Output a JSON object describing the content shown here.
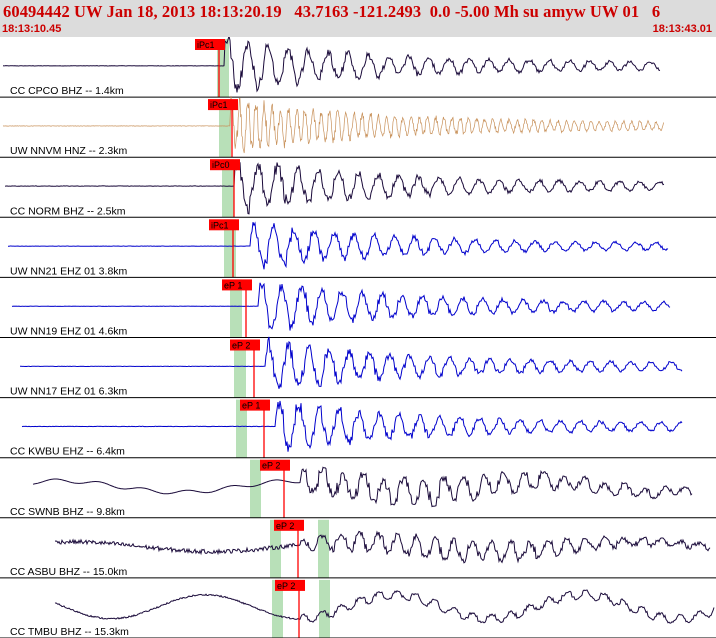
{
  "header": {
    "title": "60494442 UW Jan 18, 2013 18:13:20.19   43.7163 -121.2493  0.0 -5.00 Mh su amyw UW 01   6",
    "start_time": "18:13:10.45",
    "end_time": "18:13:43.01"
  },
  "colors": {
    "header_bg": "#dcdcdc",
    "header_text": "#cc0000",
    "pick": "#ff0000",
    "pick_window": "#b8e0b8",
    "trace_bhz": "#1a0a3a",
    "trace_hnz": "#c8915a",
    "trace_ehz": "#0000cc"
  },
  "channels": [
    {
      "label": "CC CPCO BHZ -- 1.4km",
      "pick": "iPc1",
      "color": "trace_bhz",
      "style": "sharp"
    },
    {
      "label": "UW NNVM HNZ -- 2.3km",
      "pick": "iPc1",
      "color": "trace_hnz",
      "style": "dense"
    },
    {
      "label": "CC NORM BHZ -- 2.5km",
      "pick": "iPc0",
      "color": "trace_bhz",
      "style": "sharp"
    },
    {
      "label": "UW NN21 EHZ 01 3.8km",
      "pick": "iPc1",
      "color": "trace_ehz",
      "style": "sharp"
    },
    {
      "label": "UW NN19 EHZ 01 4.6km",
      "pick": "eP 1",
      "color": "trace_ehz",
      "style": "sharp"
    },
    {
      "label": "UW NN17 EHZ 01 6.3km",
      "pick": "eP 2",
      "color": "trace_ehz",
      "style": "sharp"
    },
    {
      "label": "CC KWBU EHZ -- 6.4km",
      "pick": "eP 1",
      "color": "trace_ehz",
      "style": "sharp"
    },
    {
      "label": "CC SWNB BHZ -- 9.8km",
      "pick": "eP 2",
      "color": "trace_bhz",
      "style": "wavy"
    },
    {
      "label": "CC ASBU BHZ -- 15.0km",
      "pick": "eP 2",
      "color": "trace_bhz",
      "style": "noisy"
    },
    {
      "label": "CC TMBU BHZ -- 15.3km",
      "pick": "eP 2",
      "color": "trace_bhz",
      "style": "slow"
    }
  ]
}
